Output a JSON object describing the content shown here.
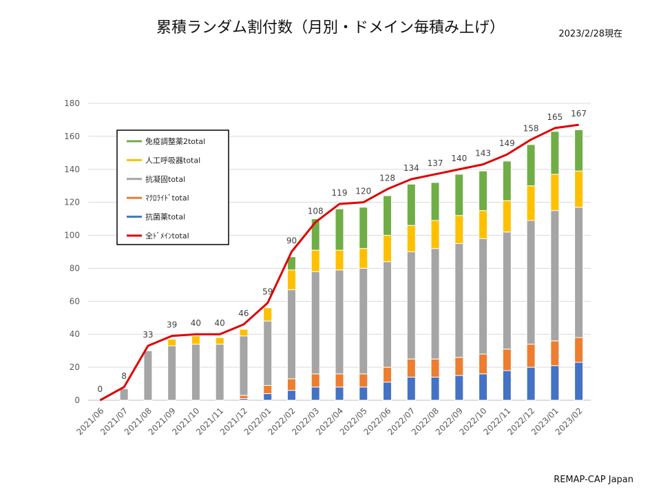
{
  "header": {
    "title": "累積ランダム割付数（月別・ドメイン毎積み上げ）",
    "date": "2023/2/28現在"
  },
  "footer": {
    "credit": "REMAP-CAP Japan"
  },
  "colors": {
    "antibiotic": "#4472C4",
    "macrolide": "#ED7D31",
    "anticoag": "#A5A5A5",
    "ventilation": "#FFC000",
    "immuno": "#70AD47",
    "total": "#E00000",
    "grid": "#D9D9D9"
  },
  "chart_data": {
    "type": "bar",
    "stacked": true,
    "title": "累積ランダム割付数（月別・ドメイン毎積み上げ）",
    "xlabel": "",
    "ylabel": "",
    "ylim": [
      0,
      180
    ],
    "yticks": [
      0,
      20,
      40,
      60,
      80,
      100,
      120,
      140,
      160,
      180
    ],
    "grid": true,
    "legend_position": "upper-left",
    "categories": [
      "2021/06",
      "2021/07",
      "2021/08",
      "2021/09",
      "2021/10",
      "2021/11",
      "2021/12",
      "2022/01",
      "2022/02",
      "2022/03",
      "2022/04",
      "2022/05",
      "2022/06",
      "2022/07",
      "2022/08",
      "2022/09",
      "2022/10",
      "2022/11",
      "2022/12",
      "2023/01",
      "2023/02"
    ],
    "series": [
      {
        "name": "抗菌薬total",
        "color_key": "antibiotic",
        "values": [
          0,
          0,
          0,
          0,
          0,
          0,
          1,
          4,
          6,
          8,
          8,
          8,
          11,
          14,
          14,
          15,
          16,
          18,
          20,
          21,
          23
        ]
      },
      {
        "name": "ﾏｸﾛﾗｲﾄﾞtotal",
        "color_key": "macrolide",
        "values": [
          0,
          0,
          0,
          0,
          0,
          0,
          2,
          5,
          7,
          8,
          8,
          8,
          9,
          11,
          11,
          11,
          12,
          13,
          14,
          15,
          15
        ]
      },
      {
        "name": "抗凝固total",
        "color_key": "anticoag",
        "values": [
          0,
          7,
          30,
          33,
          34,
          34,
          36,
          39,
          54,
          62,
          63,
          64,
          64,
          65,
          67,
          69,
          70,
          71,
          75,
          79,
          79
        ]
      },
      {
        "name": "人工呼吸器total",
        "color_key": "ventilation",
        "values": [
          0,
          0,
          0,
          4,
          5,
          4,
          4,
          8,
          12,
          13,
          12,
          12,
          16,
          16,
          17,
          17,
          17,
          19,
          21,
          22,
          22
        ]
      },
      {
        "name": "免疫調整薬2total",
        "color_key": "immuno",
        "values": [
          0,
          0,
          0,
          0,
          0,
          0,
          0,
          0,
          8,
          19,
          25,
          25,
          24,
          25,
          23,
          25,
          24,
          24,
          25,
          26,
          25
        ]
      }
    ],
    "line": {
      "name": "全ﾄﾞﾒｲﾝtotal",
      "color_key": "total",
      "values": [
        0,
        8,
        33,
        39,
        40,
        40,
        46,
        59,
        90,
        108,
        119,
        120,
        128,
        134,
        137,
        140,
        143,
        149,
        158,
        165,
        167
      ]
    },
    "legend_order": [
      "免疫調整薬2total",
      "人工呼吸器total",
      "抗凝固total",
      "ﾏｸﾛﾗｲﾄﾞtotal",
      "抗菌薬total",
      "全ﾄﾞﾒｲﾝtotal"
    ]
  }
}
